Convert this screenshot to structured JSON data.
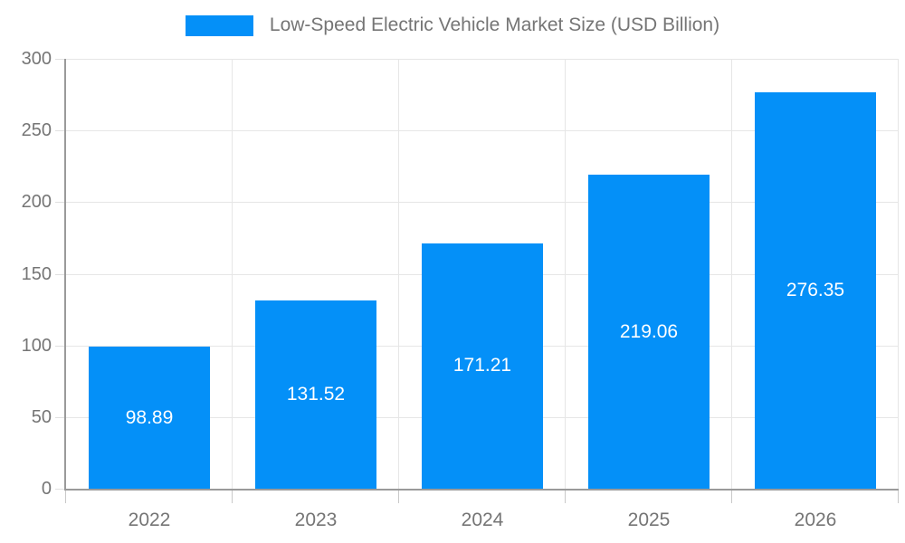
{
  "chart_data": {
    "type": "bar",
    "title": "Low-Speed Electric Vehicle Market Size (USD Billion)",
    "series_name": "Low-Speed Electric Vehicle Market Size (USD Billion)",
    "categories": [
      "2022",
      "2023",
      "2024",
      "2025",
      "2026"
    ],
    "values": [
      98.89,
      131.52,
      171.21,
      219.06,
      276.35
    ],
    "value_labels": [
      "98.89",
      "131.52",
      "171.21",
      "219.06",
      "276.35"
    ],
    "xlabel": "",
    "ylabel": "",
    "ylim": [
      0,
      300
    ],
    "y_ticks": [
      0,
      50,
      100,
      150,
      200,
      250,
      300
    ],
    "grid": true,
    "legend_position": "top",
    "value_label_position": "center-of-bar",
    "colors": {
      "bar": "#0490F8",
      "grid": "#e6e6e6",
      "axis": "#9a9a9a",
      "y_tick": "#e0e0e0",
      "x_tick": "#c9c9c9",
      "label": "#757575",
      "value_label": "#ffffff",
      "background": "#ffffff"
    }
  }
}
